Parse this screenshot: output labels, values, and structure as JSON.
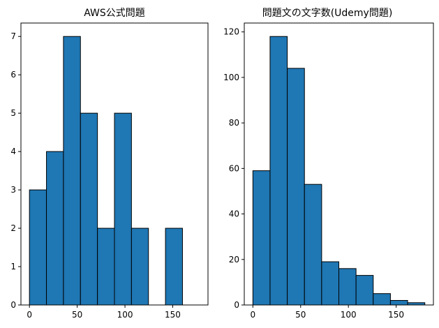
{
  "colors": {
    "bar_fill": "#1f77b4",
    "bar_edge": "#000000",
    "axis": "#000000",
    "background": "#ffffff"
  },
  "chart_data": [
    {
      "type": "bar",
      "title": "AWS公式問題",
      "xlabel": "",
      "ylabel": "",
      "bin_edges": [
        0,
        17.8,
        35.6,
        53.4,
        71.2,
        89,
        106.8,
        124.6,
        142.4,
        160.2,
        178
      ],
      "values": [
        3,
        4,
        7,
        5,
        2,
        5,
        2,
        0,
        2,
        0
      ],
      "xlim": [
        -8.9,
        186.9
      ],
      "ylim": [
        0,
        7.35
      ],
      "xticks": [
        0,
        50,
        100,
        150
      ],
      "yticks": [
        0,
        1,
        2,
        3,
        4,
        5,
        6,
        7
      ],
      "grid": false
    },
    {
      "type": "bar",
      "title": "問題文の文字数(Udemy問題)",
      "xlabel": "",
      "ylabel": "",
      "bin_edges": [
        0,
        18,
        36,
        54,
        72,
        90,
        108,
        126,
        144,
        162,
        180
      ],
      "values": [
        59,
        118,
        104,
        53,
        19,
        16,
        13,
        5,
        2,
        1
      ],
      "xlim": [
        -9,
        189
      ],
      "ylim": [
        0,
        123.9
      ],
      "xticks": [
        0,
        50,
        100,
        150
      ],
      "yticks": [
        0,
        20,
        40,
        60,
        80,
        100,
        120
      ],
      "grid": false
    }
  ]
}
